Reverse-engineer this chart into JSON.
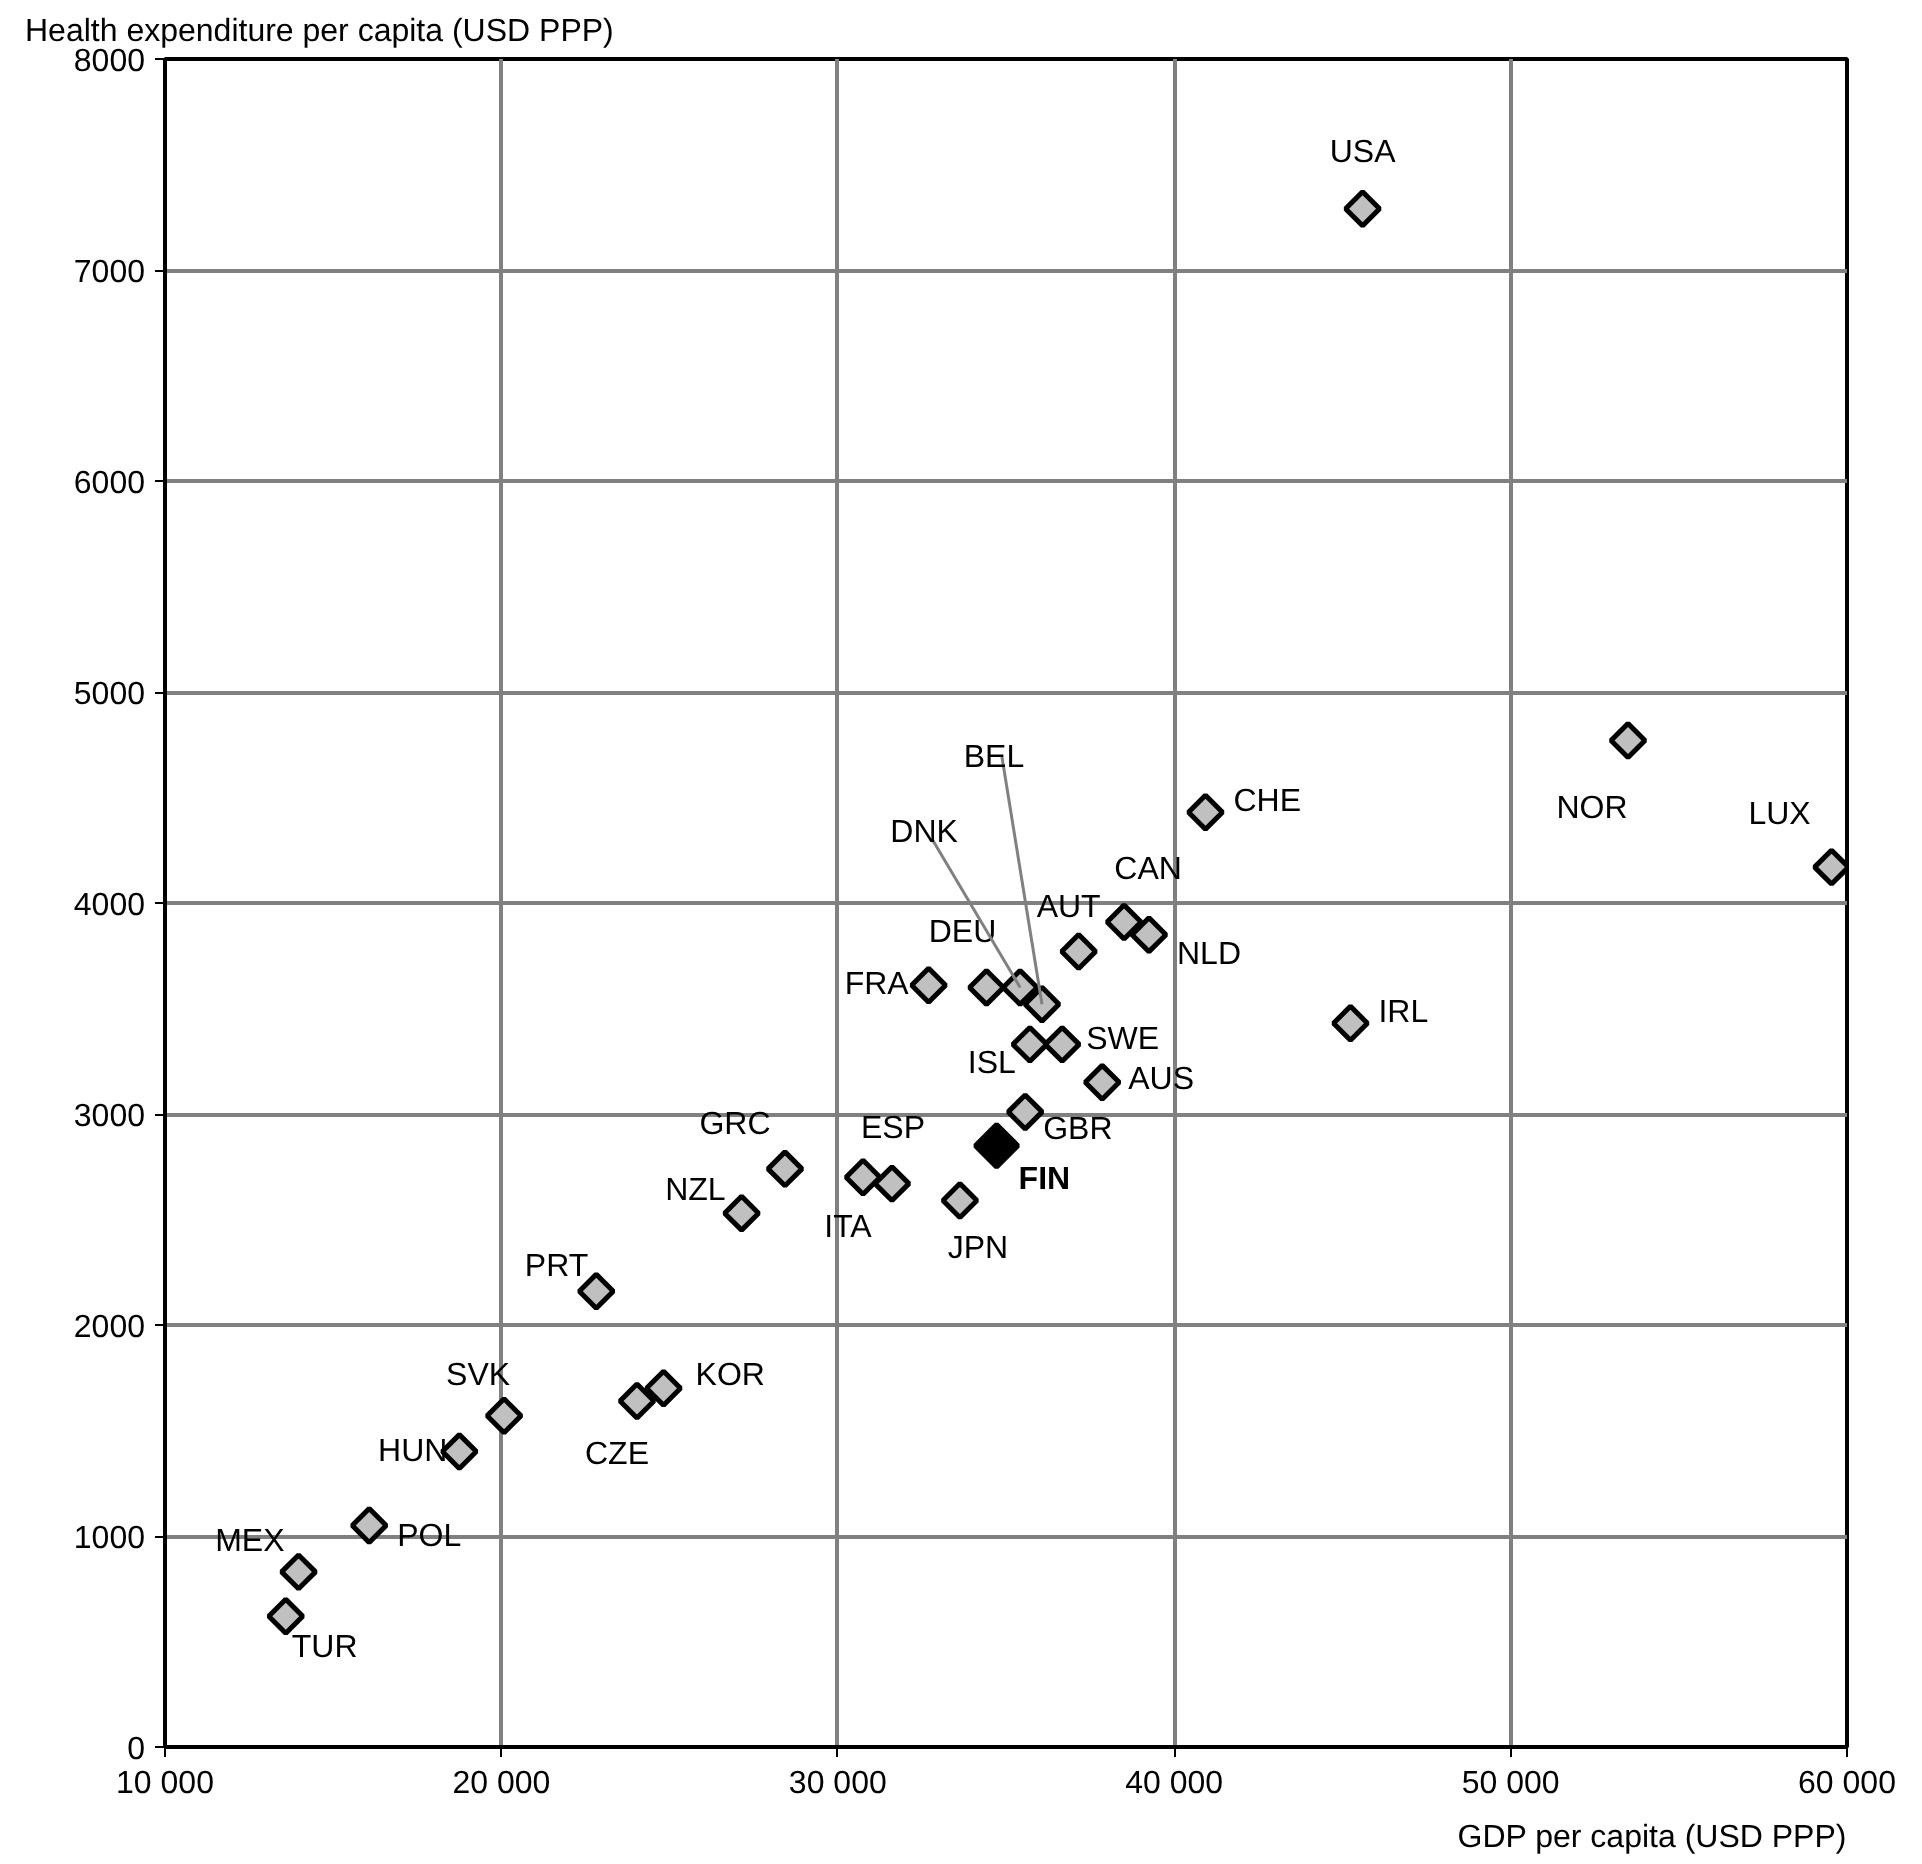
{
  "chart_data": {
    "type": "scatter",
    "xlabel": "GDP per capita (USD PPP)",
    "ylabel": "Health expenditure per capita (USD PPP)",
    "xlim": [
      10000,
      60000
    ],
    "ylim": [
      0,
      8000
    ],
    "xticks": [
      {
        "value": 10000,
        "label": "10 000"
      },
      {
        "value": 20000,
        "label": "20 000"
      },
      {
        "value": 30000,
        "label": "30 000"
      },
      {
        "value": 40000,
        "label": "40 000"
      },
      {
        "value": 50000,
        "label": "50 000"
      },
      {
        "value": 60000,
        "label": "60 000"
      }
    ],
    "yticks": [
      0,
      1000,
      2000,
      3000,
      4000,
      5000,
      6000,
      7000,
      8000
    ],
    "grid": true,
    "marker": "diamond",
    "series": [
      {
        "color": "#c0c0c0",
        "x": [
          45600,
          40930,
          53490,
          59540,
          45240,
          38510,
          39250,
          37160,
          32700,
          34420,
          35420,
          36070,
          35710,
          36670,
          37860,
          35570,
          33630,
          28430,
          30750,
          31610,
          27140,
          22820,
          20080,
          18750,
          24030,
          24820,
          16070,
          13970,
          13590
        ],
        "values": [
          7290,
          4430,
          4770,
          4170,
          3430,
          3910,
          3850,
          3770,
          3610,
          3600,
          3600,
          3520,
          3330,
          3330,
          3150,
          3010,
          2590,
          2740,
          2700,
          2670,
          2530,
          2160,
          1570,
          1400,
          1640,
          1700,
          1050,
          830,
          620
        ]
      },
      {
        "color": "#000000",
        "x": [
          34720
        ],
        "values": [
          2850
        ]
      }
    ],
    "annotations": [
      {
        "text": "USA",
        "x": 45600,
        "y": 7290
      },
      {
        "text": "CHE",
        "x": 40930,
        "y": 4430
      },
      {
        "text": "NOR",
        "x": 53490,
        "y": 4770
      },
      {
        "text": "LUX",
        "x": 59540,
        "y": 4170
      },
      {
        "text": "IRL",
        "x": 45240,
        "y": 3430
      },
      {
        "text": "CAN",
        "x": 38510,
        "y": 3910
      },
      {
        "text": "NLD",
        "x": 39250,
        "y": 3850
      },
      {
        "text": "AUT",
        "x": 37160,
        "y": 3770
      },
      {
        "text": "FRA",
        "x": 32700,
        "y": 3610
      },
      {
        "text": "DEU",
        "x": 34420,
        "y": 3600
      },
      {
        "text": "DNK",
        "x": 35420,
        "y": 3600
      },
      {
        "text": "BEL",
        "x": 36070,
        "y": 3520
      },
      {
        "text": "ISL",
        "x": 35710,
        "y": 3330
      },
      {
        "text": "SWE",
        "x": 36670,
        "y": 3330
      },
      {
        "text": "AUS",
        "x": 37860,
        "y": 3150
      },
      {
        "text": "GBR",
        "x": 35570,
        "y": 3010
      },
      {
        "text": "FIN",
        "x": 34720,
        "y": 2850
      },
      {
        "text": "JPN",
        "x": 33630,
        "y": 2590
      },
      {
        "text": "GRC",
        "x": 28430,
        "y": 2740
      },
      {
        "text": "ESP",
        "x": 30750,
        "y": 2700
      },
      {
        "text": "ITA",
        "x": 31610,
        "y": 2670
      },
      {
        "text": "NZL",
        "x": 27140,
        "y": 2530
      },
      {
        "text": "PRT",
        "x": 22820,
        "y": 2160
      },
      {
        "text": "SVK",
        "x": 20080,
        "y": 1570
      },
      {
        "text": "HUN",
        "x": 18750,
        "y": 1400
      },
      {
        "text": "CZE",
        "x": 24030,
        "y": 1640
      },
      {
        "text": "KOR",
        "x": 24820,
        "y": 1700
      },
      {
        "text": "POL",
        "x": 16070,
        "y": 1050
      },
      {
        "text": "MEX",
        "x": 13970,
        "y": 830
      },
      {
        "text": "TUR",
        "x": 13590,
        "y": 620
      }
    ]
  }
}
